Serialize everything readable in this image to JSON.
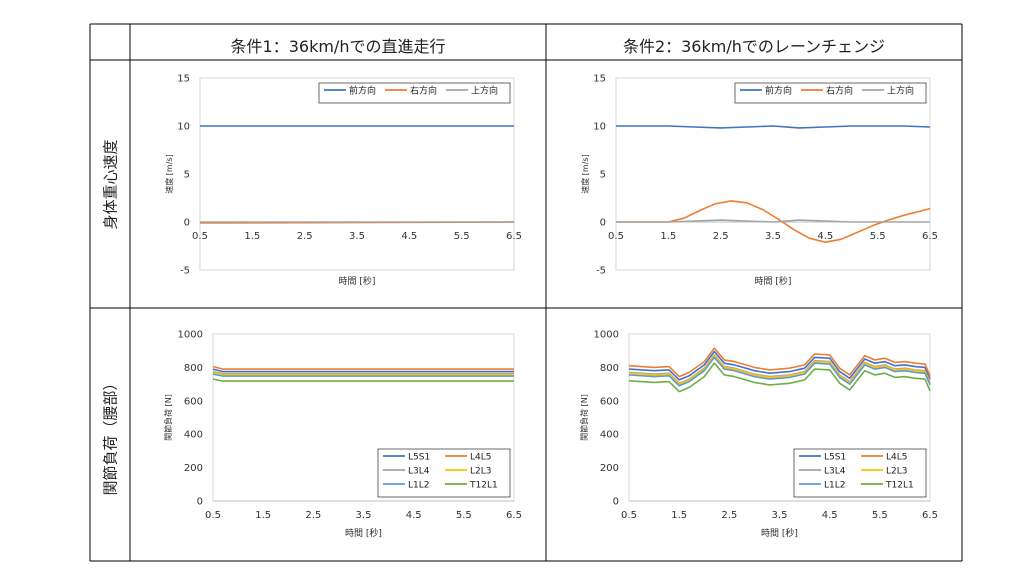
{
  "table": {
    "col1": "条件1：36km/hでの直進走行",
    "col2": "条件2：36km/hでのレーンチェンジ",
    "row1": "身体重心速度",
    "row2": "関節負荷（腰部）"
  },
  "colors": {
    "forward": "#4472C4",
    "right": "#ED7D31",
    "up": "#A5A5A5",
    "L5S1": "#4472C4",
    "L4L5": "#ED7D31",
    "L3L4": "#A5A5A5",
    "L2L3": "#FFC000",
    "L1L2": "#5B9BD5",
    "T12L1": "#70AD47"
  },
  "chart_data": [
    {
      "id": "speed_c1",
      "type": "line",
      "xlabel": "時間 [秒]",
      "ylabel": "速度 [m/s]",
      "xlim": [
        0.5,
        6.5
      ],
      "ylim": [
        -5,
        15
      ],
      "xticks": [
        "0.5",
        "1.5",
        "2.5",
        "3.5",
        "4.5",
        "5.5",
        "6.5"
      ],
      "yticks": [
        "-5",
        "0",
        "5",
        "10",
        "15"
      ],
      "x_axis_at": 0,
      "legend": "top-right",
      "legend_cols": 3,
      "series": [
        {
          "name": "前方向",
          "color": "forward",
          "x": [
            0.5,
            6.5
          ],
          "y": [
            10,
            10
          ]
        },
        {
          "name": "右方向",
          "color": "right",
          "x": [
            0.5,
            6.5
          ],
          "y": [
            -0.1,
            0
          ]
        },
        {
          "name": "上方向",
          "color": "up",
          "x": [
            0.5,
            6.5
          ],
          "y": [
            0,
            0
          ]
        }
      ]
    },
    {
      "id": "speed_c2",
      "type": "line",
      "xlabel": "時間 [秒]",
      "ylabel": "速度 [m/s]",
      "xlim": [
        0.5,
        6.5
      ],
      "ylim": [
        -5,
        15
      ],
      "xticks": [
        "0.5",
        "1.5",
        "2.5",
        "3.5",
        "4.5",
        "5.5",
        "6.5"
      ],
      "yticks": [
        "-5",
        "0",
        "5",
        "10",
        "15"
      ],
      "x_axis_at": 0,
      "legend": "top-right",
      "legend_cols": 3,
      "series": [
        {
          "name": "前方向",
          "color": "forward",
          "x": [
            0.5,
            1.0,
            1.5,
            2.0,
            2.5,
            3.0,
            3.5,
            4.0,
            4.5,
            5.0,
            5.5,
            6.0,
            6.5
          ],
          "y": [
            10,
            10,
            10,
            9.9,
            9.8,
            9.9,
            10,
            9.8,
            9.9,
            10,
            10,
            10,
            9.9
          ]
        },
        {
          "name": "右方向",
          "color": "right",
          "x": [
            0.5,
            1.0,
            1.5,
            1.8,
            2.1,
            2.4,
            2.7,
            3.0,
            3.3,
            3.6,
            3.9,
            4.2,
            4.5,
            4.8,
            5.1,
            5.4,
            5.7,
            6.0,
            6.3,
            6.5
          ],
          "y": [
            0,
            0,
            0,
            0.4,
            1.2,
            1.9,
            2.2,
            2.0,
            1.3,
            0.3,
            -0.8,
            -1.7,
            -2.1,
            -1.8,
            -1.1,
            -0.4,
            0.2,
            0.7,
            1.1,
            1.4
          ]
        },
        {
          "name": "上方向",
          "color": "up",
          "x": [
            0.5,
            1.5,
            2.0,
            2.5,
            3.0,
            3.5,
            4.0,
            4.5,
            5.0,
            5.5,
            6.0,
            6.5
          ],
          "y": [
            0,
            0,
            0.1,
            0.2,
            0.1,
            0,
            0.2,
            0.1,
            0,
            0,
            0,
            0
          ]
        }
      ]
    },
    {
      "id": "load_c1",
      "type": "line",
      "xlabel": "時間 [秒]",
      "ylabel": "関節負荷 [N]",
      "xlim": [
        0.5,
        6.5
      ],
      "ylim": [
        0,
        1000
      ],
      "xticks": [
        "0.5",
        "1.5",
        "2.5",
        "3.5",
        "4.5",
        "5.5",
        "6.5"
      ],
      "yticks": [
        "0",
        "200",
        "400",
        "600",
        "800",
        "1000"
      ],
      "legend": "bottom-right",
      "legend_cols": 2,
      "series": [
        {
          "name": "L5S1",
          "color": "L5S1",
          "x": [
            0.5,
            0.7,
            6.5
          ],
          "y": [
            790,
            775,
            775
          ]
        },
        {
          "name": "L4L5",
          "color": "L4L5",
          "x": [
            0.5,
            0.7,
            6.5
          ],
          "y": [
            805,
            790,
            790
          ]
        },
        {
          "name": "L3L4",
          "color": "L3L4",
          "x": [
            0.5,
            0.7,
            6.5
          ],
          "y": [
            775,
            762,
            762
          ]
        },
        {
          "name": "L2L3",
          "color": "L2L3",
          "x": [
            0.5,
            0.7,
            6.5
          ],
          "y": [
            770,
            757,
            757
          ]
        },
        {
          "name": "L1L2",
          "color": "L1L2",
          "x": [
            0.5,
            0.7,
            6.5
          ],
          "y": [
            760,
            748,
            748
          ]
        },
        {
          "name": "T12L1",
          "color": "T12L1",
          "x": [
            0.5,
            0.7,
            6.5
          ],
          "y": [
            730,
            718,
            718
          ]
        }
      ]
    },
    {
      "id": "load_c2",
      "type": "line",
      "xlabel": "時間 [秒]",
      "ylabel": "関節負荷 [N]",
      "xlim": [
        0.5,
        6.5
      ],
      "ylim": [
        0,
        1000
      ],
      "xticks": [
        "0.5",
        "1.5",
        "2.5",
        "3.5",
        "4.5",
        "5.5",
        "6.5"
      ],
      "yticks": [
        "0",
        "200",
        "400",
        "600",
        "800",
        "1000"
      ],
      "legend": "bottom-right",
      "legend_cols": 2,
      "base_x": [
        0.5,
        1.0,
        1.3,
        1.5,
        1.7,
        2.0,
        2.2,
        2.4,
        2.6,
        3.0,
        3.3,
        3.7,
        4.0,
        4.2,
        4.5,
        4.7,
        4.9,
        5.2,
        5.4,
        5.6,
        5.8,
        6.0,
        6.2,
        6.4,
        6.5
      ],
      "series": [
        {
          "name": "L5S1",
          "color": "L5S1",
          "offset": 25,
          "y": [
            765,
            755,
            760,
            700,
            725,
            790,
            870,
            800,
            790,
            755,
            740,
            750,
            770,
            835,
            830,
            750,
            710,
            825,
            800,
            810,
            785,
            790,
            780,
            775,
            705
          ]
        },
        {
          "name": "L4L5",
          "color": "L4L5",
          "offset": 45,
          "y": [
            765,
            755,
            760,
            700,
            725,
            790,
            870,
            800,
            790,
            755,
            740,
            750,
            770,
            835,
            830,
            750,
            710,
            825,
            800,
            810,
            785,
            790,
            780,
            775,
            705
          ]
        },
        {
          "name": "L3L4",
          "color": "L3L4",
          "offset": 5,
          "y": [
            765,
            755,
            760,
            700,
            725,
            790,
            870,
            800,
            790,
            755,
            740,
            750,
            770,
            835,
            830,
            750,
            710,
            825,
            800,
            810,
            785,
            790,
            780,
            775,
            705
          ]
        },
        {
          "name": "L2L3",
          "color": "L2L3",
          "offset": 0,
          "y": [
            765,
            755,
            760,
            700,
            725,
            790,
            870,
            800,
            790,
            755,
            740,
            750,
            770,
            835,
            830,
            750,
            710,
            825,
            800,
            810,
            785,
            790,
            780,
            775,
            705
          ]
        },
        {
          "name": "L1L2",
          "color": "L1L2",
          "offset": -10,
          "y": [
            765,
            755,
            760,
            700,
            725,
            790,
            870,
            800,
            790,
            755,
            740,
            750,
            770,
            835,
            830,
            750,
            710,
            825,
            800,
            810,
            785,
            790,
            780,
            775,
            705
          ]
        },
        {
          "name": "T12L1",
          "color": "T12L1",
          "offset": -45,
          "y": [
            765,
            755,
            760,
            700,
            725,
            790,
            870,
            800,
            790,
            755,
            740,
            750,
            770,
            835,
            830,
            750,
            710,
            825,
            800,
            810,
            785,
            790,
            780,
            775,
            705
          ]
        }
      ]
    }
  ]
}
